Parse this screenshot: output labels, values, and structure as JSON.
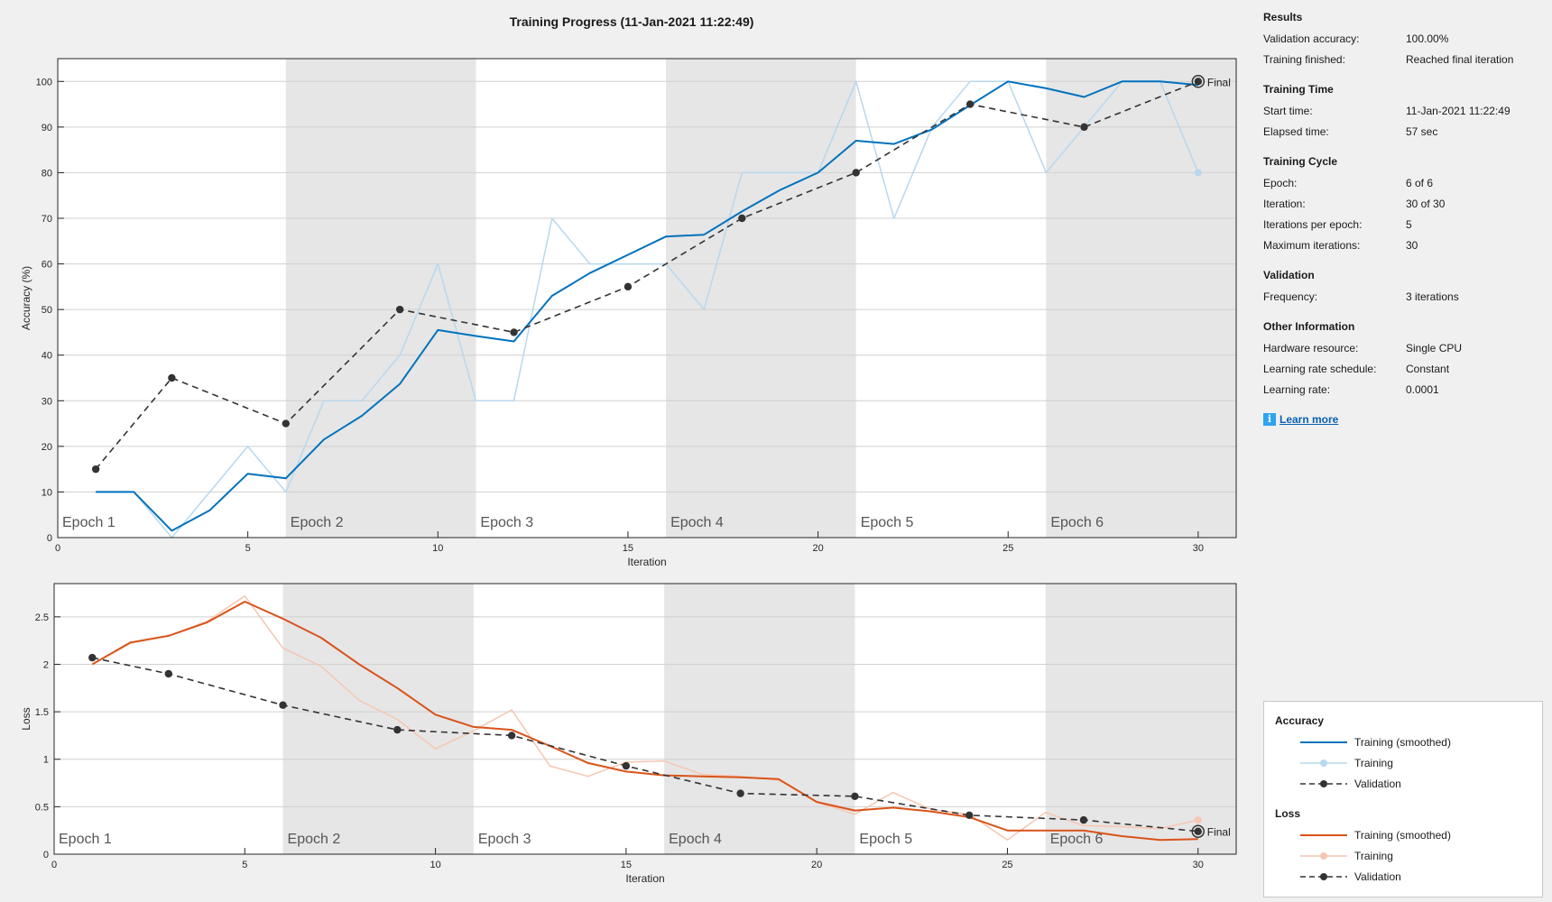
{
  "window": {
    "title": "Training Progress (11-Jan-2021 11:22:49)"
  },
  "colors": {
    "acc_smooth": "#0072bd",
    "acc_train": "#b8d8ee",
    "loss_smooth": "#d95319",
    "loss_train": "#f6c6b1",
    "validation": "#333333",
    "epoch_shade": "#e6e6e6",
    "plot_bg": "#ffffff"
  },
  "info": {
    "sections": [
      {
        "heading": "Results",
        "rows": [
          {
            "key": "Validation accuracy:",
            "value": "100.00%"
          },
          {
            "key": "Training finished:",
            "value": "Reached final iteration"
          }
        ]
      },
      {
        "heading": "Training Time",
        "rows": [
          {
            "key": "Start time:",
            "value": "11-Jan-2021 11:22:49"
          },
          {
            "key": "Elapsed time:",
            "value": "57 sec"
          }
        ]
      },
      {
        "heading": "Training Cycle",
        "rows": [
          {
            "key": "Epoch:",
            "value": "6 of 6"
          },
          {
            "key": "Iteration:",
            "value": "30 of 30"
          },
          {
            "key": "Iterations per epoch:",
            "value": "5"
          },
          {
            "key": "Maximum iterations:",
            "value": "30"
          }
        ]
      },
      {
        "heading": "Validation",
        "rows": [
          {
            "key": "Frequency:",
            "value": "3 iterations"
          }
        ]
      },
      {
        "heading": "Other Information",
        "rows": [
          {
            "key": "Hardware resource:",
            "value": "Single CPU"
          },
          {
            "key": "Learning rate schedule:",
            "value": "Constant"
          },
          {
            "key": "Learning rate:",
            "value": "0.0001"
          }
        ]
      }
    ],
    "learn_more": "Learn more",
    "info_icon": "info-icon"
  },
  "legend": {
    "groups": [
      {
        "heading": "Accuracy",
        "items": [
          {
            "label": "Training (smoothed)",
            "style": "acc_smooth"
          },
          {
            "label": "Training",
            "style": "acc_train"
          },
          {
            "label": "Validation",
            "style": "validation"
          }
        ]
      },
      {
        "heading": "Loss",
        "items": [
          {
            "label": "Training (smoothed)",
            "style": "loss_smooth"
          },
          {
            "label": "Training",
            "style": "loss_train"
          },
          {
            "label": "Validation",
            "style": "validation"
          }
        ]
      }
    ]
  },
  "chart_data": [
    {
      "type": "line",
      "ylabel": "Accuracy (%)",
      "xlabel": "Iteration",
      "xlim": [
        0,
        31
      ],
      "ylim": [
        0,
        105
      ],
      "xticks": [
        0,
        5,
        10,
        15,
        20,
        25,
        30
      ],
      "yticks": [
        0,
        10,
        20,
        30,
        40,
        50,
        60,
        70,
        80,
        90,
        100
      ],
      "grid": true,
      "epochs": [
        {
          "label": "Epoch 1",
          "range": [
            0,
            6
          ],
          "shaded": false
        },
        {
          "label": "Epoch 2",
          "range": [
            6,
            11
          ],
          "shaded": true
        },
        {
          "label": "Epoch 3",
          "range": [
            11,
            16
          ],
          "shaded": false
        },
        {
          "label": "Epoch 4",
          "range": [
            16,
            21
          ],
          "shaded": true
        },
        {
          "label": "Epoch 5",
          "range": [
            21,
            26
          ],
          "shaded": false
        },
        {
          "label": "Epoch 6",
          "range": [
            26,
            31
          ],
          "shaded": true
        }
      ],
      "final_label": "Final",
      "series": [
        {
          "name": "Training",
          "style": "acc_train",
          "x": [
            1,
            2,
            3,
            4,
            5,
            6,
            7,
            8,
            9,
            10,
            11,
            12,
            13,
            14,
            15,
            16,
            17,
            18,
            19,
            20,
            21,
            22,
            23,
            24,
            25,
            26,
            27,
            28,
            29,
            30
          ],
          "y": [
            10,
            10,
            0,
            10,
            20,
            10,
            30,
            30,
            40,
            60,
            30,
            30,
            70,
            60,
            60,
            60,
            50,
            80,
            80,
            80,
            100,
            70,
            90,
            100,
            100,
            80,
            90,
            100,
            100,
            80
          ]
        },
        {
          "name": "Training (smoothed)",
          "style": "acc_smooth",
          "x": [
            1,
            2,
            3,
            4,
            5,
            6,
            7,
            8,
            9,
            10,
            11,
            12,
            13,
            14,
            15,
            16,
            17,
            18,
            19,
            20,
            21,
            22,
            23,
            24,
            25,
            26,
            27,
            28,
            29,
            30
          ],
          "y": [
            10,
            10,
            1.5,
            6,
            14,
            13,
            21.5,
            26.7,
            33.7,
            45.5,
            44.2,
            43,
            53,
            58,
            62,
            66,
            66.4,
            71.5,
            76.2,
            80,
            87,
            86.3,
            89.5,
            94.8,
            100,
            98.5,
            96.6,
            100,
            100,
            99.2
          ]
        },
        {
          "name": "Validation",
          "style": "validation",
          "x": [
            1,
            3,
            6,
            9,
            12,
            15,
            18,
            21,
            24,
            27,
            30
          ],
          "y": [
            15,
            35,
            25,
            50,
            45,
            55,
            70,
            80,
            95,
            90,
            100
          ]
        }
      ]
    },
    {
      "type": "line",
      "ylabel": "Loss",
      "xlabel": "Iteration",
      "xlim": [
        0,
        31
      ],
      "ylim": [
        0,
        2.85
      ],
      "xticks": [
        0,
        5,
        10,
        15,
        20,
        25,
        30
      ],
      "yticks": [
        0,
        0.5,
        1,
        1.5,
        2,
        2.5
      ],
      "ytick_labels": [
        "0",
        "0.5",
        "1",
        "1.5",
        "2",
        "2.5"
      ],
      "grid": true,
      "epochs": [
        {
          "label": "Epoch 1",
          "range": [
            0,
            6
          ],
          "shaded": false
        },
        {
          "label": "Epoch 2",
          "range": [
            6,
            11
          ],
          "shaded": true
        },
        {
          "label": "Epoch 3",
          "range": [
            11,
            16
          ],
          "shaded": false
        },
        {
          "label": "Epoch 4",
          "range": [
            16,
            21
          ],
          "shaded": true
        },
        {
          "label": "Epoch 5",
          "range": [
            21,
            26
          ],
          "shaded": false
        },
        {
          "label": "Epoch 6",
          "range": [
            26,
            31
          ],
          "shaded": true
        }
      ],
      "final_label": "Final",
      "series": [
        {
          "name": "Training",
          "style": "loss_train",
          "x": [
            1,
            2,
            3,
            4,
            5,
            6,
            7,
            8,
            9,
            10,
            11,
            12,
            13,
            14,
            15,
            16,
            17,
            18,
            19,
            20,
            21,
            22,
            23,
            24,
            25,
            26,
            27,
            28,
            29,
            30
          ],
          "y": [
            2.0,
            2.22,
            2.3,
            2.45,
            2.72,
            2.17,
            1.98,
            1.62,
            1.42,
            1.11,
            1.3,
            1.52,
            0.93,
            0.82,
            0.97,
            0.98,
            0.84,
            0.82,
            0.78,
            0.55,
            0.42,
            0.65,
            0.47,
            0.42,
            0.15,
            0.44,
            0.3,
            0.29,
            0.27,
            0.36
          ]
        },
        {
          "name": "Training (smoothed)",
          "style": "loss_smooth",
          "x": [
            1,
            2,
            3,
            4,
            5,
            6,
            7,
            8,
            9,
            10,
            11,
            12,
            13,
            14,
            15,
            16,
            17,
            18,
            19,
            20,
            21,
            22,
            23,
            24,
            25,
            26,
            27,
            28,
            29,
            30
          ],
          "y": [
            2.0,
            2.23,
            2.3,
            2.44,
            2.66,
            2.48,
            2.28,
            2.0,
            1.75,
            1.47,
            1.34,
            1.31,
            1.14,
            0.96,
            0.87,
            0.83,
            0.82,
            0.81,
            0.79,
            0.55,
            0.46,
            0.49,
            0.45,
            0.39,
            0.25,
            0.25,
            0.25,
            0.19,
            0.15,
            0.16
          ]
        },
        {
          "name": "Validation",
          "style": "validation",
          "x": [
            1,
            3,
            6,
            9,
            12,
            15,
            18,
            21,
            24,
            27,
            30
          ],
          "y": [
            2.07,
            1.9,
            1.57,
            1.31,
            1.25,
            0.93,
            0.64,
            0.61,
            0.41,
            0.36,
            0.24
          ]
        }
      ]
    }
  ]
}
